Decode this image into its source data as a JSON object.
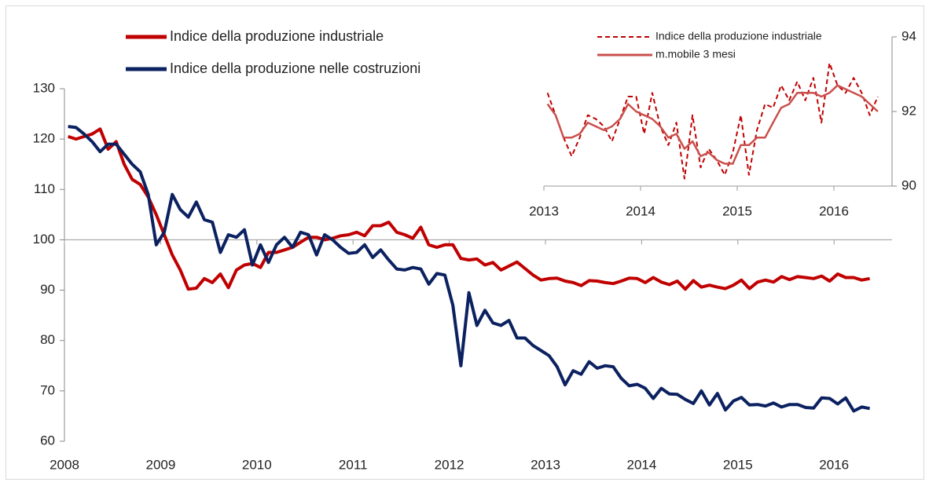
{
  "chart_data": [
    {
      "type": "line",
      "categories": [
        "2008",
        null,
        null,
        null,
        null,
        null,
        null,
        null,
        null,
        null,
        null,
        null,
        "2009",
        null,
        null,
        null,
        null,
        null,
        null,
        null,
        null,
        null,
        null,
        null,
        "2010",
        null,
        null,
        null,
        null,
        null,
        null,
        null,
        null,
        null,
        null,
        null,
        "2011",
        null,
        null,
        null,
        null,
        null,
        null,
        null,
        null,
        null,
        null,
        null,
        "2012",
        null,
        null,
        null,
        null,
        null,
        null,
        null,
        null,
        null,
        null,
        null,
        "2013",
        null,
        null,
        null,
        null,
        null,
        null,
        null,
        null,
        null,
        null,
        null,
        "2014",
        null,
        null,
        null,
        null,
        null,
        null,
        null,
        null,
        null,
        null,
        null,
        "2015",
        null,
        null,
        null,
        null,
        null,
        null,
        null,
        null,
        null,
        null,
        null,
        "2016",
        null,
        null,
        null,
        null
      ],
      "series": [
        {
          "name": "Indice della produzione industriale",
          "color": "#c00000",
          "values": [
            120.5,
            120,
            120.5,
            121,
            122,
            118,
            119.5,
            115,
            112,
            111,
            108.5,
            105,
            101,
            97,
            94,
            90.2,
            90.4,
            92.3,
            91.5,
            93.2,
            90.5,
            94,
            95,
            95.3,
            94.5,
            97.5,
            97.5,
            98,
            98.5,
            99.5,
            100.5,
            100.5,
            100,
            100.3,
            100.8,
            101,
            101.5,
            100.8,
            102.8,
            102.8,
            103.5,
            101.5,
            101,
            100.3,
            102.5,
            99,
            98.5,
            99,
            99,
            96.3,
            96,
            96.2,
            95,
            95.5,
            94,
            94.8,
            95.6,
            94.3,
            93,
            92,
            92.3,
            92.4,
            91.8,
            91.5,
            90.9,
            91.9,
            91.8,
            91.5,
            91.3,
            91.8,
            92.4,
            92.3,
            91.5,
            92.5,
            91.6,
            91.1,
            91.8,
            90.2,
            91.9,
            90.6,
            91,
            90.6,
            90.3,
            91,
            92,
            90.3,
            91.6,
            92,
            91.6,
            92.7,
            92.1,
            92.7,
            92.5,
            92.3,
            92.8,
            91.8,
            93.2,
            92.5,
            92.5,
            92,
            92.3
          ]
        },
        {
          "name": "Indice della produzione nelle costruzioni",
          "color": "#0b2160",
          "values": [
            122.5,
            122.3,
            121,
            119.5,
            117.5,
            119,
            119,
            117,
            115,
            113.5,
            109,
            99,
            101.5,
            109,
            106,
            104.5,
            107.5,
            104,
            103.5,
            97.5,
            101,
            100.5,
            102,
            95,
            99,
            95.5,
            99,
            100.5,
            98.5,
            101.5,
            101,
            97,
            101,
            100,
            98.5,
            97.3,
            97.5,
            99,
            96.5,
            98,
            96,
            94.2,
            94,
            94.5,
            94.2,
            91.2,
            93.3,
            93,
            87,
            75,
            89.5,
            83,
            86,
            83.5,
            83,
            84,
            80.5,
            80.5,
            79,
            78,
            77,
            74.8,
            71.2,
            74,
            73.3,
            75.8,
            74.5,
            75,
            74.8,
            72.5,
            71,
            71.3,
            70.5,
            68.5,
            70.5,
            69.4,
            69.3,
            68.3,
            67.5,
            70,
            67.2,
            69.5,
            66.2,
            68,
            68.7,
            67.2,
            67.3,
            67,
            67.6,
            66.8,
            67.3,
            67.3,
            66.7,
            66.6,
            68.6,
            68.5,
            67.4,
            68.6,
            66,
            66.8,
            66.5
          ]
        }
      ],
      "ylim": [
        60,
        130
      ],
      "yticks": [
        60,
        70,
        80,
        90,
        100,
        110,
        120,
        130
      ],
      "x_axis_at": 100,
      "y_axis_side": "left"
    },
    {
      "type": "line",
      "categories": [
        "2013",
        null,
        null,
        null,
        null,
        null,
        null,
        null,
        null,
        null,
        null,
        null,
        "2014",
        null,
        null,
        null,
        null,
        null,
        null,
        null,
        null,
        null,
        null,
        null,
        "2015",
        null,
        null,
        null,
        null,
        null,
        null,
        null,
        null,
        null,
        null,
        null,
        "2016",
        null,
        null,
        null,
        null,
        null
      ],
      "series": [
        {
          "name": "Indice della produzione industriale",
          "color": "#c00000",
          "dashed": true,
          "values": [
            92.5,
            91.9,
            91.3,
            90.8,
            91.3,
            91.9,
            91.8,
            91.6,
            91.2,
            91.8,
            92.4,
            92.4,
            91.4,
            92.5,
            91.6,
            91.1,
            91.7,
            90.2,
            91.9,
            90.5,
            91,
            90.7,
            90.3,
            90.9,
            91.9,
            90.3,
            91.5,
            92.2,
            92.1,
            92.7,
            92.3,
            92.8,
            92.3,
            92.9,
            91.7,
            93.3,
            92.7,
            92.5,
            92.9,
            92.5,
            91.9,
            92.4
          ]
        },
        {
          "name": "m.mobile 3 mesi",
          "color": "#c9504d",
          "dashed": false,
          "values": [
            92.2,
            91.9,
            91.3,
            91.3,
            91.4,
            91.7,
            91.6,
            91.5,
            91.6,
            91.8,
            92.2,
            92,
            91.9,
            91.8,
            91.6,
            91.3,
            91.4,
            91,
            91.2,
            90.8,
            90.9,
            90.7,
            90.6,
            90.6,
            91.1,
            91.1,
            91.3,
            91.3,
            91.7,
            92.1,
            92.2,
            92.5,
            92.5,
            92.5,
            92.4,
            92.5,
            92.7,
            92.6,
            92.5,
            92.4,
            92.2,
            92
          ]
        }
      ],
      "ylim": [
        90,
        94
      ],
      "yticks": [
        90,
        92,
        94
      ],
      "y_axis_side": "right"
    }
  ]
}
